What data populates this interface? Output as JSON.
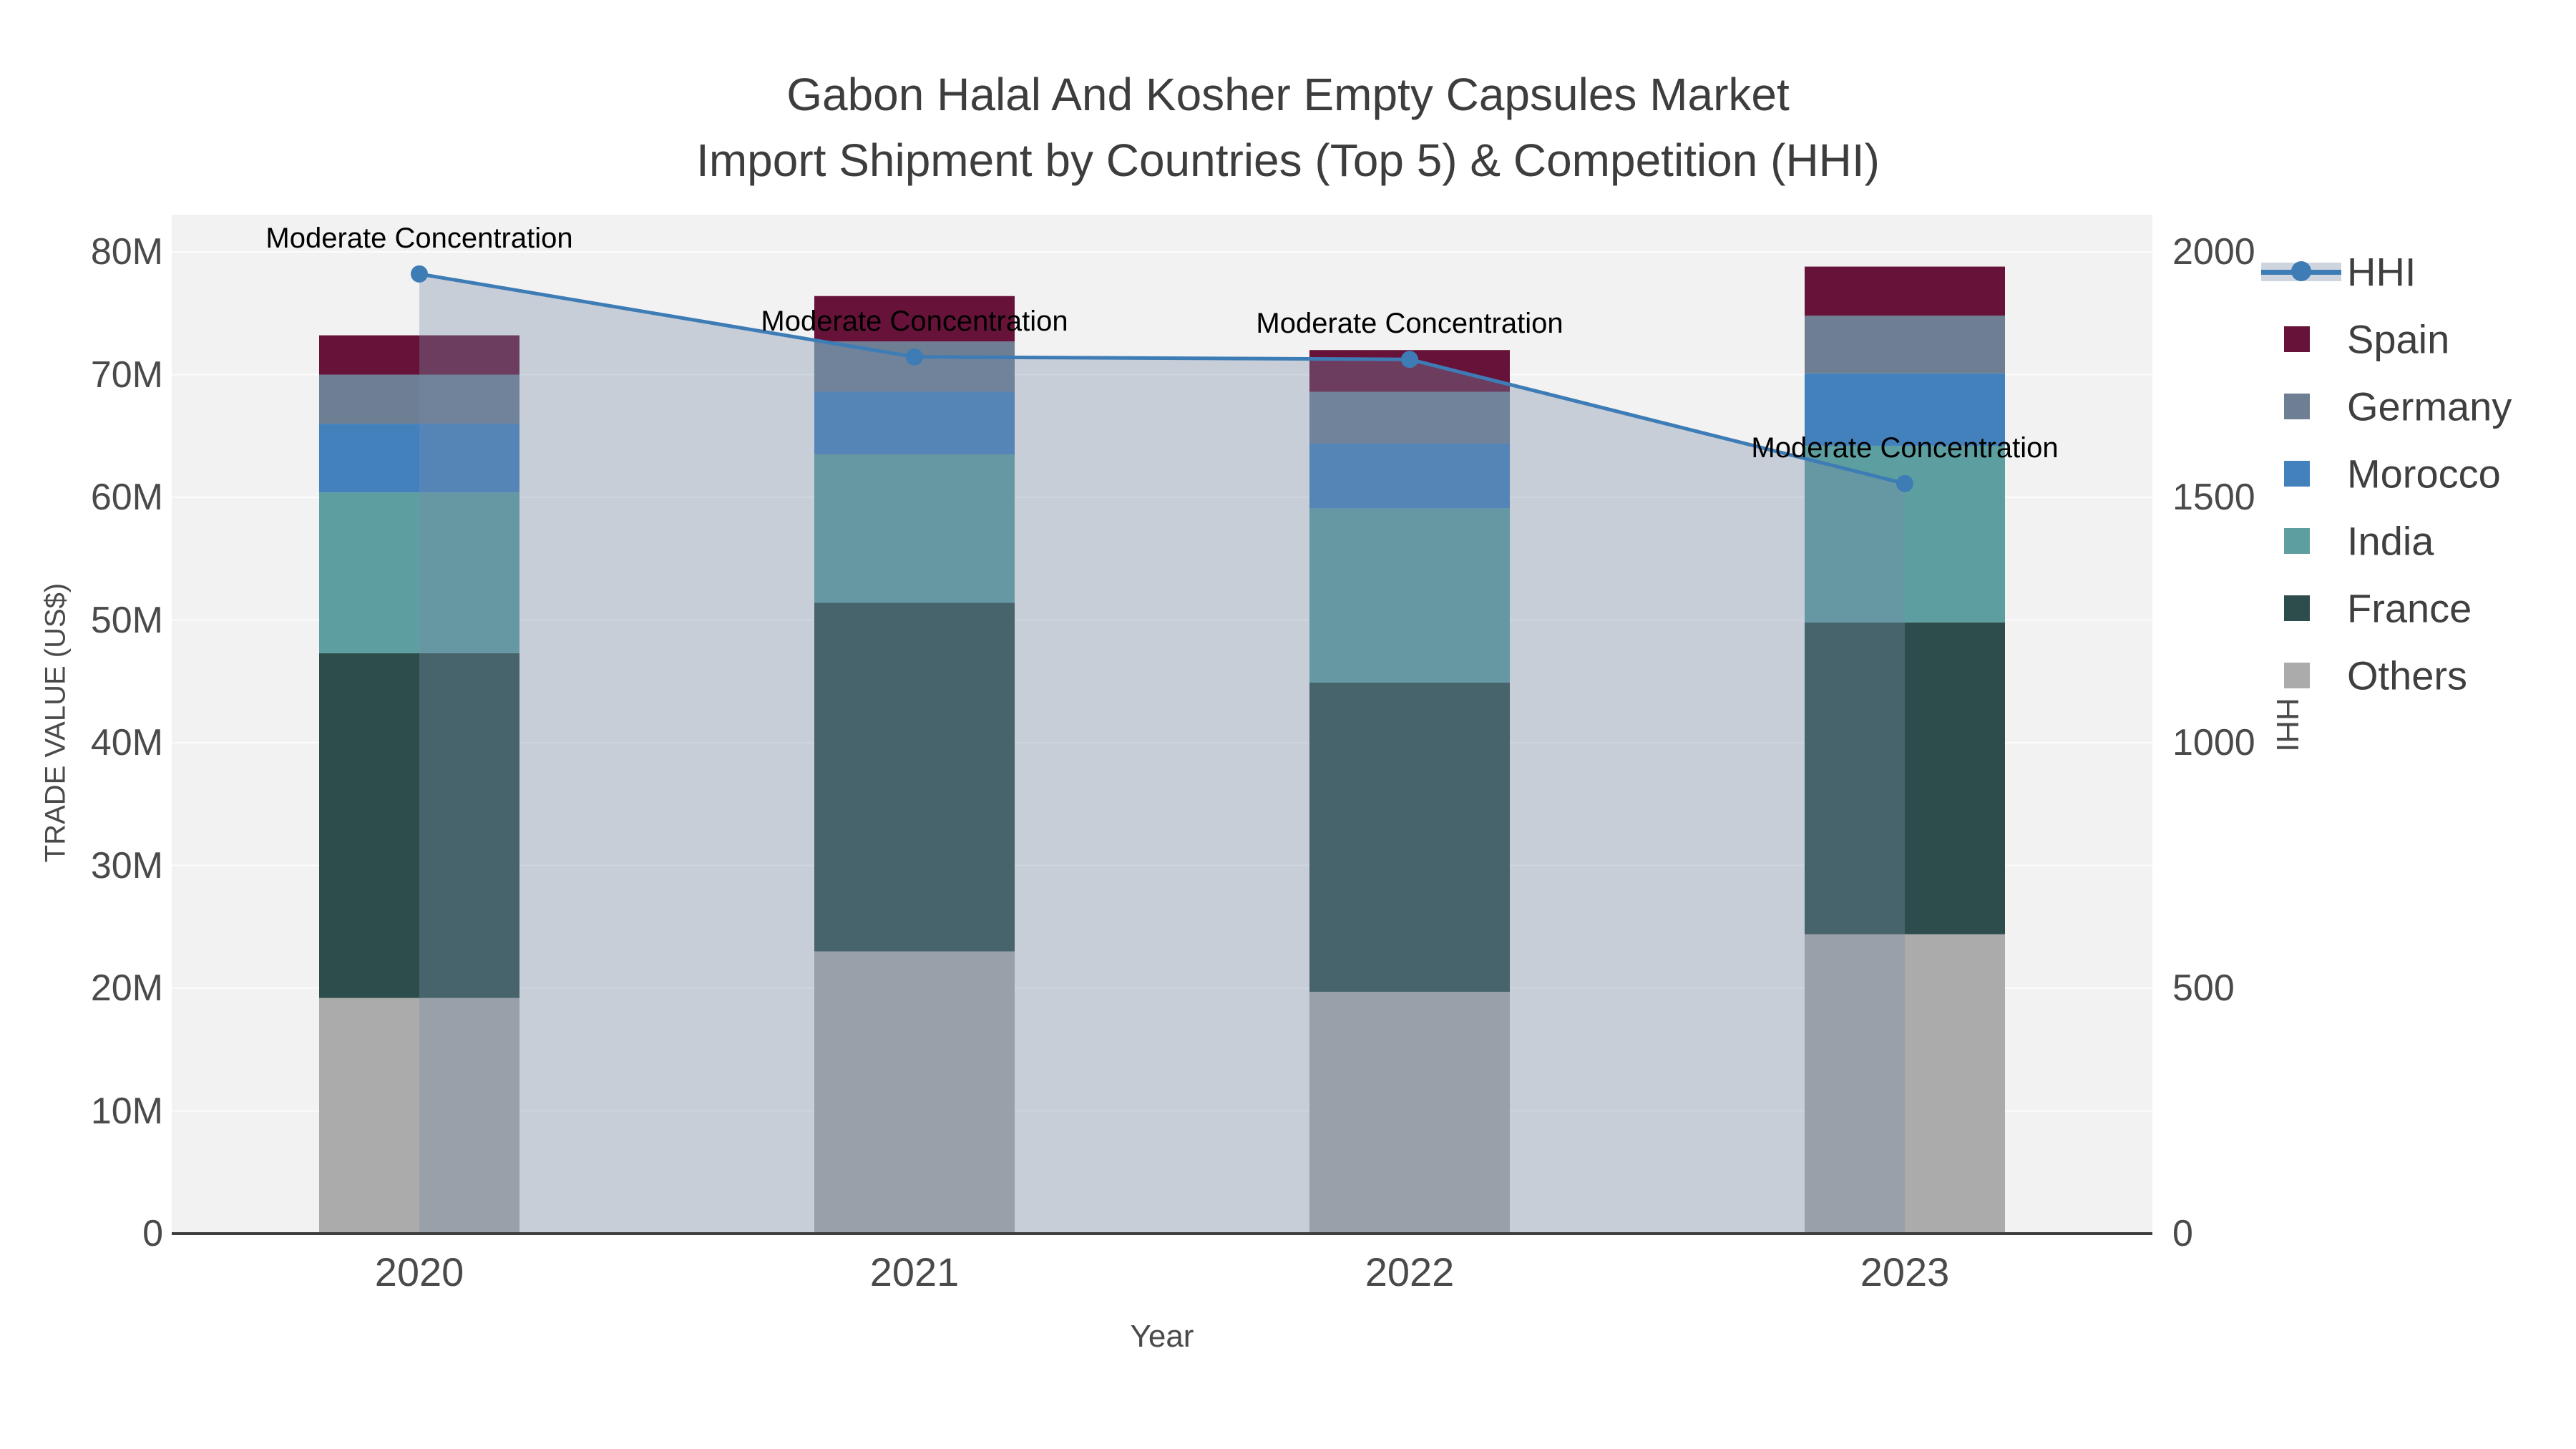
{
  "title": {
    "line1": "Gabon Halal And Kosher Empty Capsules Market",
    "line2": "Import Shipment by Countries (Top 5) & Competition (HHI)"
  },
  "axes": {
    "x": {
      "title": "Year"
    },
    "y_left": {
      "title": "TRADE VALUE (US$)"
    },
    "y_right": {
      "title": "HHI"
    }
  },
  "chart_data": {
    "type": "bar+line",
    "subtype": "stacked-bars-with-secondary-line",
    "categories": [
      "2020",
      "2021",
      "2022",
      "2023"
    ],
    "series": [
      {
        "name": "Spain",
        "color": "#671339",
        "values_m": [
          3.2,
          3.7,
          3.4,
          4.0
        ]
      },
      {
        "name": "Germany",
        "color": "#6e7f93",
        "values_m": [
          4.0,
          4.1,
          4.2,
          4.7
        ]
      },
      {
        "name": "Morocco",
        "color": "#4381bd",
        "values_m": [
          5.6,
          5.1,
          5.3,
          5.9
        ]
      },
      {
        "name": "India",
        "color": "#5d9fa0",
        "values_m": [
          13.1,
          12.1,
          14.2,
          14.4
        ]
      },
      {
        "name": "France",
        "color": "#2d4d4c",
        "values_m": [
          28.1,
          28.4,
          25.2,
          25.4
        ]
      },
      {
        "name": "Others",
        "color": "#ababab",
        "values_m": [
          19.2,
          23.0,
          19.7,
          24.4
        ]
      }
    ],
    "line_series": {
      "name": "HHI",
      "axis": "right",
      "values": [
        1955,
        1786,
        1781,
        1528
      ],
      "color": "#3e7cb6",
      "area_fill": "rgba(120,140,170,0.35)",
      "legend_band_color": "#cfd5de"
    },
    "annotations": [
      {
        "category": "2020",
        "text": "Moderate Concentration"
      },
      {
        "category": "2021",
        "text": "Moderate Concentration"
      },
      {
        "category": "2022",
        "text": "Moderate Concentration"
      },
      {
        "category": "2023",
        "text": "Moderate Concentration"
      }
    ],
    "y_left_ticks": {
      "labels": [
        "0",
        "10M",
        "20M",
        "30M",
        "40M",
        "50M",
        "60M",
        "70M",
        "80M"
      ],
      "values_m": [
        0,
        10,
        20,
        30,
        40,
        50,
        60,
        70,
        80
      ],
      "max_m": 80
    },
    "y_right_ticks": {
      "labels": [
        "0",
        "500",
        "1000",
        "1500",
        "2000"
      ],
      "values": [
        0,
        500,
        1000,
        1500,
        2000
      ],
      "max": 2000
    },
    "xlabel": "Year",
    "ylabel": "TRADE VALUE (US$)",
    "y2label": "HHI",
    "legend_position": "right",
    "grid": "horizontal-white-on-lightgray",
    "plot_bg": "#f2f2f2",
    "grid_color": "#fcfcfc",
    "axisline_color": "#3f3f3f"
  }
}
